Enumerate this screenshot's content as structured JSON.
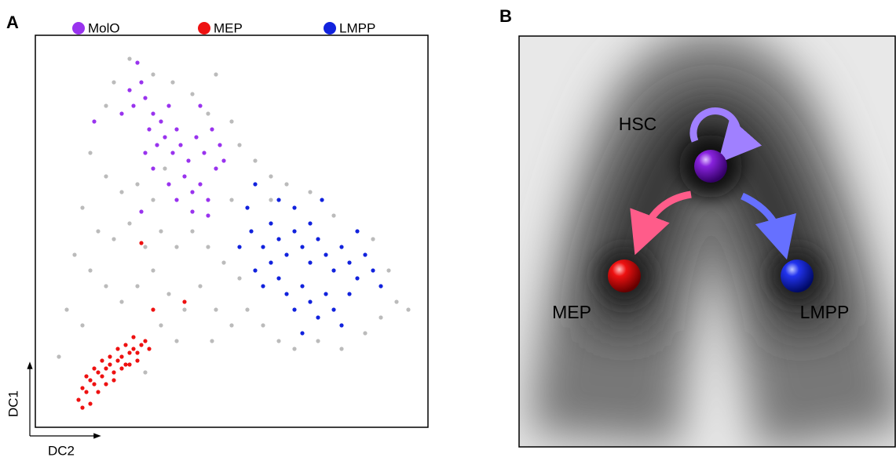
{
  "chart_data": {
    "type": "scatter",
    "xlabel": "DC2",
    "ylabel": "DC1",
    "xlim": [
      0,
      100
    ],
    "ylim": [
      0,
      100
    ],
    "series": [
      {
        "color": "#bbbbbb",
        "x": [
          24,
          20,
          30,
          35,
          18,
          40,
          44,
          50,
          52,
          56,
          60,
          64,
          14,
          18,
          22,
          26,
          30,
          12,
          16,
          20,
          24,
          28,
          32,
          36,
          40,
          44,
          48,
          52,
          10,
          14,
          18,
          22,
          26,
          30,
          34,
          38,
          42,
          46,
          50,
          54,
          58,
          62,
          66,
          72,
          78,
          84,
          88,
          92,
          95,
          90,
          86,
          76,
          70,
          8,
          12,
          32,
          36,
          28,
          6,
          45,
          33,
          46,
          60,
          50
        ],
        "values": [
          94,
          88,
          90,
          88,
          82,
          85,
          80,
          78,
          72,
          68,
          64,
          62,
          70,
          64,
          60,
          62,
          58,
          56,
          50,
          48,
          52,
          46,
          50,
          46,
          50,
          46,
          42,
          38,
          44,
          40,
          36,
          32,
          36,
          40,
          34,
          30,
          36,
          30,
          26,
          30,
          26,
          22,
          20,
          22,
          20,
          24,
          28,
          32,
          30,
          40,
          48,
          54,
          60,
          30,
          26,
          26,
          22,
          14,
          18,
          22,
          66,
          90,
          58,
          58
        ]
      },
      {
        "name": "MolO",
        "color": "#9933ee",
        "x": [
          26,
          27,
          24,
          22,
          25,
          28,
          30,
          32,
          34,
          36,
          29,
          31,
          33,
          35,
          37,
          39,
          41,
          43,
          45,
          47,
          38,
          40,
          42,
          44,
          36,
          34,
          30,
          28,
          42,
          46,
          48,
          15,
          40,
          27,
          44
        ],
        "values": [
          93,
          88,
          86,
          80,
          82,
          84,
          80,
          78,
          82,
          76,
          76,
          72,
          74,
          70,
          72,
          68,
          74,
          70,
          76,
          72,
          64,
          60,
          62,
          58,
          58,
          62,
          66,
          70,
          82,
          66,
          68,
          78,
          55,
          55,
          54
        ]
      },
      {
        "name": "MEP",
        "color": "#ee1111",
        "x": [
          11,
          12,
          13,
          14,
          15,
          16,
          17,
          18,
          19,
          20,
          21,
          22,
          23,
          24,
          25,
          26,
          27,
          28,
          29,
          12,
          14,
          16,
          18,
          20,
          22,
          24,
          26,
          13,
          15,
          17,
          19,
          21,
          23,
          25,
          27,
          30,
          38
        ],
        "values": [
          7,
          10,
          9,
          12,
          11,
          14,
          13,
          15,
          16,
          14,
          17,
          18,
          16,
          19,
          20,
          19,
          21,
          22,
          20,
          5,
          6,
          9,
          11,
          12,
          15,
          16,
          17,
          13,
          15,
          17,
          18,
          20,
          21,
          23,
          47,
          30,
          32
        ]
      },
      {
        "name": "LMPP",
        "color": "#1122dd",
        "x": [
          55,
          58,
          60,
          62,
          64,
          66,
          68,
          70,
          72,
          74,
          76,
          78,
          80,
          82,
          84,
          86,
          62,
          64,
          66,
          68,
          70,
          72,
          74,
          76,
          78,
          80,
          56,
          58,
          60,
          54,
          62,
          66,
          70,
          56,
          52,
          88,
          82,
          68,
          73
        ],
        "values": [
          50,
          46,
          52,
          48,
          44,
          50,
          46,
          42,
          48,
          44,
          40,
          46,
          42,
          38,
          44,
          40,
          38,
          34,
          30,
          36,
          32,
          28,
          34,
          30,
          26,
          34,
          40,
          36,
          42,
          56,
          58,
          56,
          52,
          62,
          46,
          36,
          50,
          24,
          58
        ]
      }
    ]
  },
  "panel_labels": [
    "A",
    "B"
  ],
  "diagram": {
    "nodes": [
      {
        "label": "HSC"
      },
      {
        "label": "MEP"
      },
      {
        "label": "LMPP"
      }
    ]
  }
}
